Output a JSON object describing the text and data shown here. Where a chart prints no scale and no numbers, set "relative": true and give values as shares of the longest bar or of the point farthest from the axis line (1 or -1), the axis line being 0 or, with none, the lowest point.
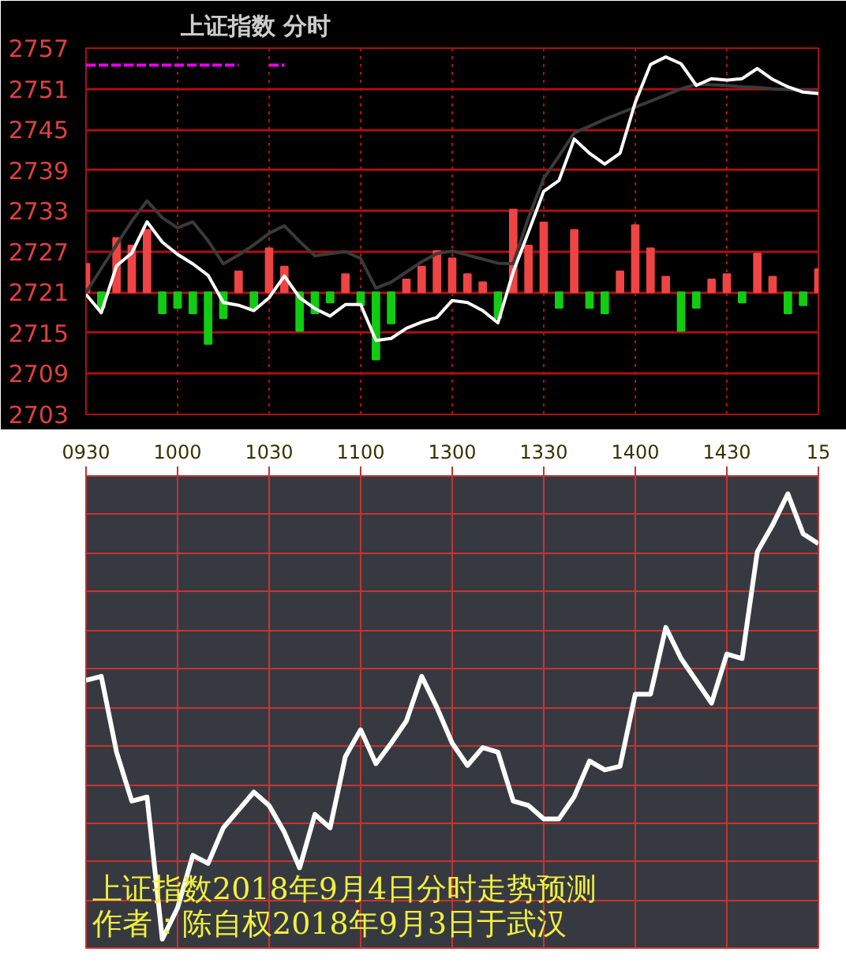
{
  "chart_data": [
    {
      "type": "line",
      "title": "上证指数 分时",
      "ylim": [
        2703,
        2757
      ],
      "yticks": [
        2703,
        2709,
        2715,
        2721,
        2727,
        2733,
        2739,
        2745,
        2751,
        2757
      ],
      "tick_labels": "y",
      "grid": true,
      "categories": [
        null,
        null,
        null,
        null,
        null,
        null,
        null,
        null,
        null,
        null,
        null,
        null,
        null,
        null,
        null,
        null,
        null,
        null,
        null,
        null,
        null,
        null,
        null,
        null,
        null,
        null,
        null,
        null,
        null,
        null,
        null,
        null,
        null,
        null,
        null,
        null,
        null,
        null,
        null,
        null,
        null,
        null,
        null,
        null,
        null,
        null,
        null,
        null,
        null
      ],
      "series": [
        {
          "type": "bar",
          "base": [
            2721,
            2721,
            2721,
            2721,
            2721,
            2721,
            2721,
            2721,
            2721,
            2721,
            2721,
            2721,
            2721,
            2721,
            2721,
            2721,
            2721,
            2721,
            2721,
            2721,
            2721,
            2721,
            2721,
            2721,
            2721,
            2721,
            2721,
            2721,
            2721,
            2721,
            2721,
            2721,
            2721,
            2721,
            2721,
            2721,
            2721,
            2721,
            2721,
            2721,
            2721,
            2721,
            2721,
            2721,
            2721,
            2721,
            2721,
            2721,
            2721
          ],
          "values": [
            4.2,
            -2.3,
            8.0,
            6.9,
            9.2,
            -3.1,
            -2.3,
            -3.1,
            -7.6,
            -3.8,
            3.1,
            -2.3,
            6.5,
            3.8,
            -5.7,
            -3.1,
            -1.5,
            2.7,
            -1.9,
            -9.9,
            -4.6,
            1.9,
            3.8,
            6.1,
            5.0,
            2.7,
            1.5,
            -3.8,
            12.2,
            6.9,
            10.3,
            -2.3,
            9.2,
            -2.3,
            -3.1,
            3.1,
            9.9,
            6.5,
            2.3,
            -5.7,
            -2.3,
            1.9,
            2.7,
            -1.5,
            5.7,
            2.3,
            -3.1,
            -1.9,
            3.4
          ],
          "colors": [
            "#ee4444",
            "#11cc11",
            "#ee4444",
            "#ee4444",
            "#ee4444",
            "#11cc11",
            "#11cc11",
            "#11cc11",
            "#11cc11",
            "#11cc11",
            "#ee4444",
            "#11cc11",
            "#ee4444",
            "#ee4444",
            "#11cc11",
            "#11cc11",
            "#11cc11",
            "#ee4444",
            "#11cc11",
            "#11cc11",
            "#11cc11",
            "#ee4444",
            "#ee4444",
            "#ee4444",
            "#ee4444",
            "#ee4444",
            "#ee4444",
            "#11cc11",
            "#ee4444",
            "#ee4444",
            "#ee4444",
            "#11cc11",
            "#ee4444",
            "#11cc11",
            "#11cc11",
            "#ee4444",
            "#ee4444",
            "#ee4444",
            "#ee4444",
            "#11cc11",
            "#11cc11",
            "#ee4444",
            "#ee4444",
            "#11cc11",
            "#ee4444",
            "#ee4444",
            "#11cc11",
            "#11cc11",
            "#ee4444"
          ]
        },
        {
          "type": "line",
          "color": "#3a3a3a",
          "values": [
            2721,
            2724.5,
            2728,
            2731.5,
            2734.5,
            2732,
            2730.5,
            2731.4,
            2728.6,
            2725.2,
            2726.5,
            2728,
            2729.7,
            2730.8,
            2728.5,
            2726.4,
            2726.7,
            2727,
            2726,
            2721.6,
            2722.5,
            2724,
            2725.5,
            2726.7,
            2727.1,
            2726.5,
            2725.9,
            2725.3,
            2725.2,
            2732,
            2737.8,
            2741.1,
            2744.5,
            2745.5,
            2746.5,
            2747.4,
            2748.3,
            2749.2,
            2750.1,
            2751,
            2751.7,
            2751.6,
            2751.5,
            2751.3,
            2751.2,
            2751,
            2750.9,
            2750.8,
            2750.7
          ]
        },
        {
          "type": "line",
          "color": "#ffffff",
          "values": [
            2720.7,
            2718,
            2724.9,
            2726.8,
            2731.4,
            2728.4,
            2726.6,
            2725.2,
            2723.5,
            2719.5,
            2719.1,
            2718.3,
            2720.2,
            2723.4,
            2720.2,
            2718.6,
            2717.5,
            2719.2,
            2719.2,
            2713.9,
            2714.2,
            2715.7,
            2716.6,
            2717.3,
            2719.8,
            2719.5,
            2718.3,
            2716.5,
            2724,
            2729.9,
            2735.9,
            2737.5,
            2743.6,
            2741.5,
            2739.9,
            2741.5,
            2749,
            2754.6,
            2755.7,
            2754.7,
            2751.5,
            2752.5,
            2752.3,
            2752.5,
            2754,
            2752.4,
            2751.3,
            2750.5,
            2750.3
          ]
        },
        {
          "type": "line",
          "color": "#ee00ee",
          "line_style": "dashed",
          "values": [
            2754.5,
            2754.5,
            2754.5,
            2754.5,
            2754.5,
            2754.5,
            2754.5,
            2754.5,
            2754.5,
            2754.5,
            2754.5,
            null,
            2754.5,
            2754.5,
            null,
            null,
            null,
            null,
            null,
            null,
            null,
            null,
            null,
            null,
            null,
            null,
            null,
            null,
            null,
            null,
            null,
            null,
            null,
            null,
            null,
            null,
            null,
            null,
            null,
            null,
            null,
            null,
            null,
            null,
            null,
            null,
            null,
            null,
            null
          ]
        }
      ]
    },
    {
      "type": "line",
      "relative": true,
      "tick_labels": "x",
      "grid": true,
      "categories": [
        "0930",
        null,
        null,
        null,
        null,
        null,
        "1000",
        null,
        null,
        null,
        null,
        null,
        "1030",
        null,
        null,
        null,
        null,
        null,
        "1100",
        null,
        null,
        null,
        null,
        null,
        "1300",
        null,
        null,
        null,
        null,
        null,
        "1330",
        null,
        null,
        null,
        null,
        null,
        "1400",
        null,
        null,
        null,
        null,
        null,
        "1430",
        null,
        null,
        null,
        null,
        null,
        "15"
      ],
      "annotations": [
        "上证指数2018年9月4日分时走势预测",
        "作者：陈自权2018年9月3日于武汉"
      ],
      "series": [
        {
          "color": "#ffffff",
          "values": [
            0.581,
            0.59,
            0.42,
            0.31,
            0.319,
            0,
            0.07,
            0.188,
            0.17,
            0.25,
            0.29,
            0.33,
            0.3,
            0.24,
            0.16,
            0.28,
            0.25,
            0.41,
            0.47,
            0.394,
            0.44,
            0.49,
            0.59,
            0.52,
            0.44,
            0.39,
            0.43,
            0.42,
            0.31,
            0.3,
            0.27,
            0.27,
            0.32,
            0.4,
            0.38,
            0.388,
            0.55,
            0.55,
            0.7,
            0.63,
            0.58,
            0.53,
            0.64,
            0.63,
            0.87,
            0.93,
            1,
            0.91,
            0.888
          ]
        }
      ]
    }
  ]
}
